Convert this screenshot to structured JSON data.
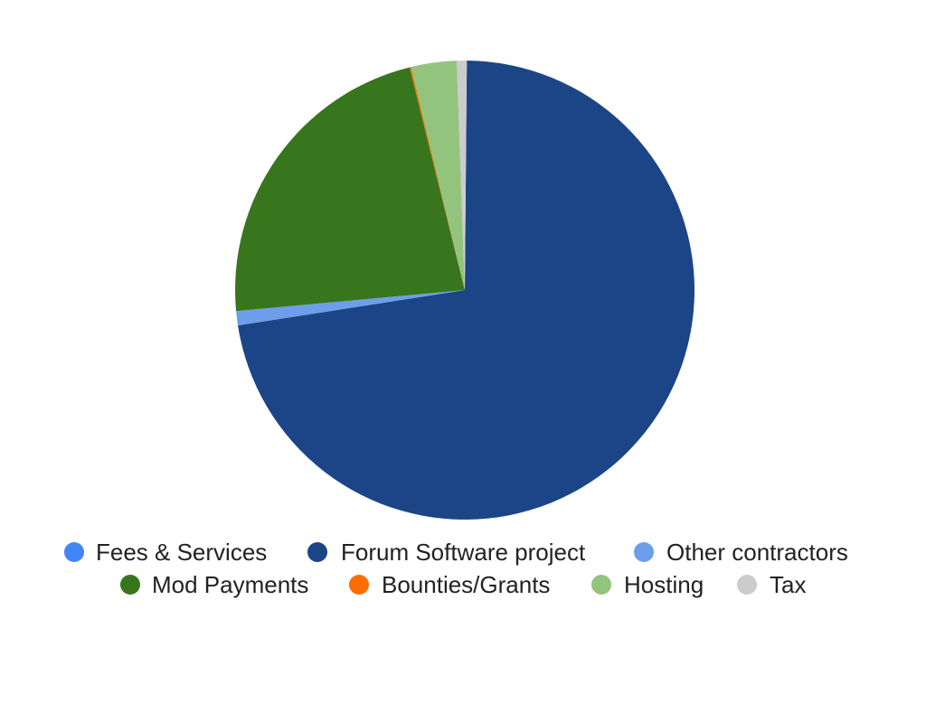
{
  "chart_data": {
    "type": "pie",
    "title": "",
    "legend_position": "bottom",
    "start_angle_deg": 0.5,
    "slices": [
      {
        "label": "Fees & Services",
        "value": 0.0,
        "color": "#4285f4"
      },
      {
        "label": "Forum Software project",
        "value": 72.4,
        "color": "#1c4587"
      },
      {
        "label": "Other contractors",
        "value": 1.0,
        "color": "#6d9eeb"
      },
      {
        "label": "Mod Payments",
        "value": 22.6,
        "color": "#38761d"
      },
      {
        "label": "Bounties/Grants",
        "value": 0.1,
        "color": "#ff6d01"
      },
      {
        "label": "Hosting",
        "value": 3.2,
        "color": "#93c47d"
      },
      {
        "label": "Tax",
        "value": 0.7,
        "color": "#cccccc"
      }
    ]
  }
}
